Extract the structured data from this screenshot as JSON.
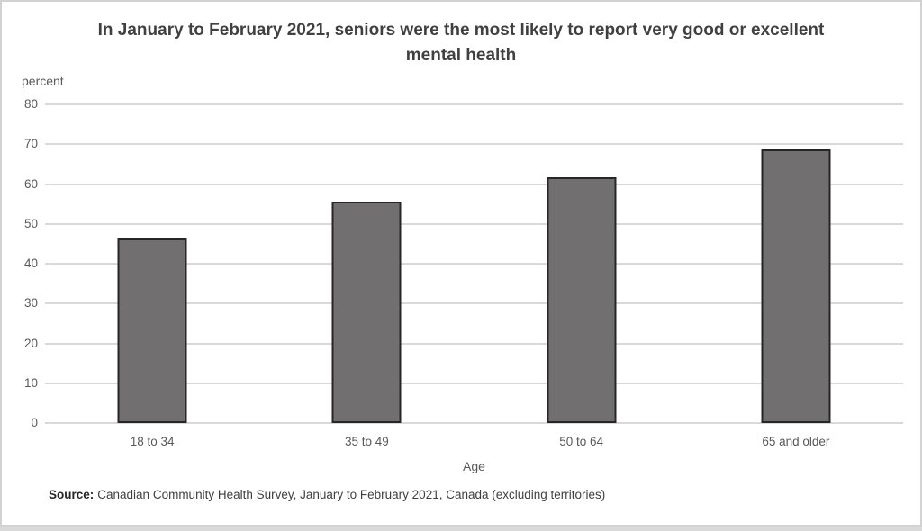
{
  "page": {
    "background": "#ffffff",
    "frame_border_color": "#d2d2d2",
    "bottom_strip_color": "#d9d9d9"
  },
  "chart_data": {
    "type": "bar",
    "title": "In January to February 2021, seniors were the most likely to report very good or excellent mental health",
    "unit_label": "percent",
    "xlabel": "Age",
    "ylabel": "percent",
    "categories": [
      "18 to 34",
      "35 to 49",
      "50 to 64",
      "65 and older"
    ],
    "values": [
      46.3,
      55.7,
      61.6,
      68.6
    ],
    "ylim": [
      0,
      80
    ],
    "yticks": [
      0,
      10,
      20,
      30,
      40,
      50,
      60,
      70,
      80
    ],
    "grid": true,
    "legend": "none",
    "bar_color": "#716f6f",
    "bar_border_color": "#262626",
    "gridline_color": "#d9d9d9"
  },
  "source": {
    "label": "Source:",
    "text": "Canadian Community Health Survey, January to February 2021, Canada (excluding territories)"
  }
}
